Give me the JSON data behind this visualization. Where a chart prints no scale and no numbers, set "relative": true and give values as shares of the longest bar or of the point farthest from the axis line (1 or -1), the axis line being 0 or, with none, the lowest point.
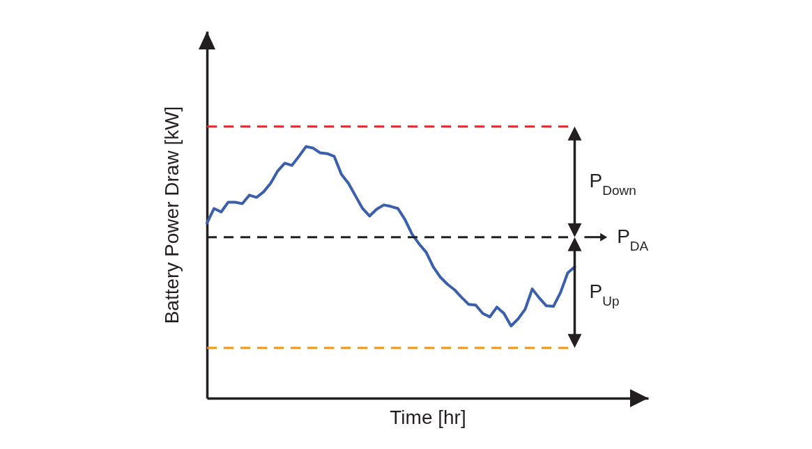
{
  "chart_data": {
    "type": "line",
    "relative": true,
    "xlabel": "Time [hr]",
    "ylabel": "Battery Power Draw [kW]",
    "categories": [
      null,
      null,
      null,
      null,
      null,
      null,
      null,
      null,
      null,
      null,
      null,
      null,
      null,
      null,
      null,
      null,
      null,
      null,
      null,
      null,
      null,
      null,
      null,
      null,
      null,
      null,
      null,
      null,
      null,
      null,
      null,
      null,
      null,
      null,
      null,
      null,
      null,
      null,
      null,
      null,
      null,
      null,
      null,
      null,
      null,
      null,
      null,
      null,
      null,
      null,
      null,
      null,
      null
    ],
    "series": [
      {
        "color": "#3a5fad",
        "values": [
          0.696,
          0.754,
          0.74,
          0.779,
          0.779,
          0.773,
          0.807,
          0.798,
          0.82,
          0.854,
          0.903,
          0.934,
          0.925,
          0.961,
          1,
          0.994,
          0.975,
          0.972,
          0.961,
          0.89,
          0.854,
          0.804,
          0.754,
          0.724,
          0.751,
          0.768,
          0.762,
          0.754,
          0.71,
          0.652,
          0.613,
          0.58,
          0.522,
          0.481,
          0.453,
          0.431,
          0.401,
          0.373,
          0.37,
          0.337,
          0.323,
          0.362,
          0.337,
          0.287,
          0.315,
          0.354,
          0.434,
          0.398,
          0.367,
          0.365,
          0.42,
          0.497,
          0.522
        ]
      }
    ],
    "ref_lines": [
      {
        "axis": "y",
        "value": 1.08,
        "color": "#e8262a",
        "line_style": "dashed"
      },
      {
        "axis": "y",
        "value": 0.64,
        "color": "#231f20",
        "line_style": "dashed",
        "label": "P$_{DA}$"
      },
      {
        "axis": "y",
        "value": 0.2,
        "color": "#f7941d",
        "line_style": "dashed"
      }
    ],
    "annotations": [
      "P$_{Down}$",
      "P$_{Up}$"
    ]
  }
}
